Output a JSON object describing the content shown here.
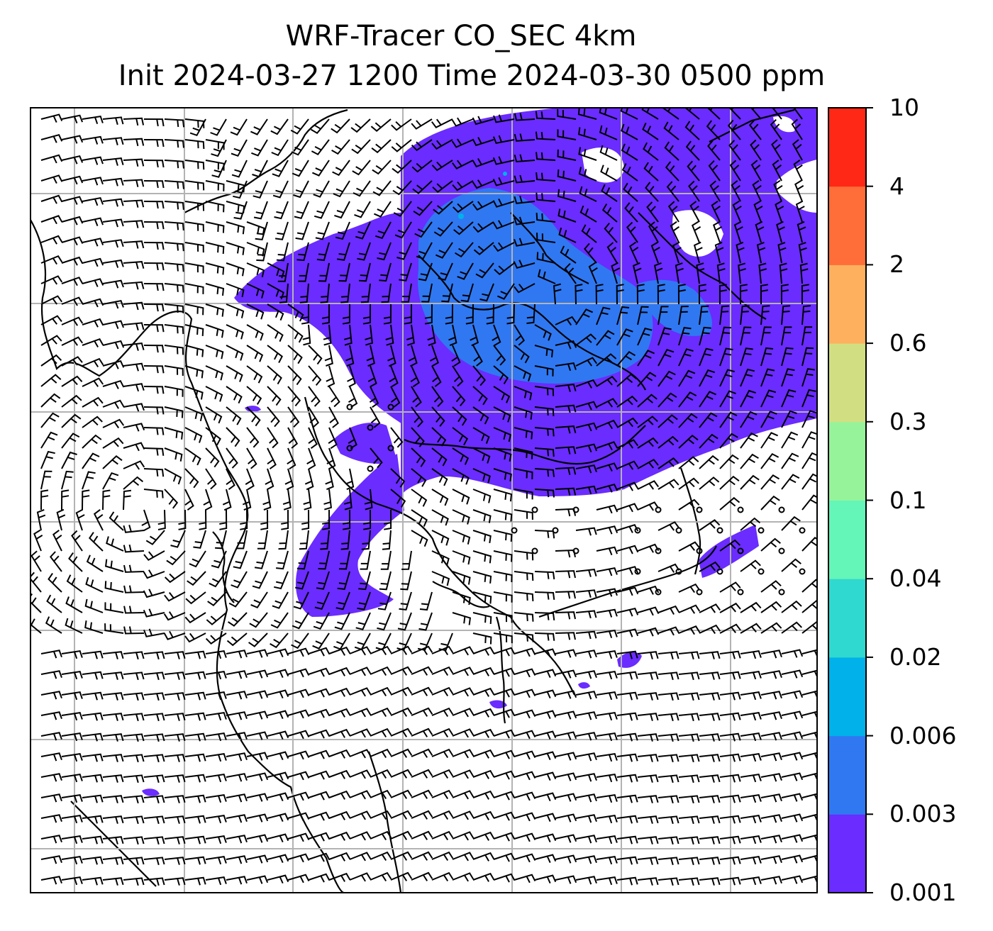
{
  "title_line1": "WRF-Tracer CO_SEC 4km",
  "title_line2": "Init 2024-03-27 1200 Time 2024-03-30 0500 ppm",
  "colorbar": {
    "unit": "ppm",
    "levels": [
      "0.001",
      "0.003",
      "0.006",
      "0.02",
      "0.04",
      "0.1",
      "0.3",
      "0.6",
      "2",
      "4",
      "10"
    ],
    "colors": [
      "#6a2cff",
      "#2f78f2",
      "#00b1ea",
      "#2fd9cf",
      "#64f5b8",
      "#96f39a",
      "#d1df82",
      "#ffb05e",
      "#ff6e38",
      "#ff2716"
    ]
  },
  "map": {
    "grid": true,
    "overlays": [
      "tracer-concentration-fill",
      "wind-barbs",
      "coastlines"
    ]
  }
}
